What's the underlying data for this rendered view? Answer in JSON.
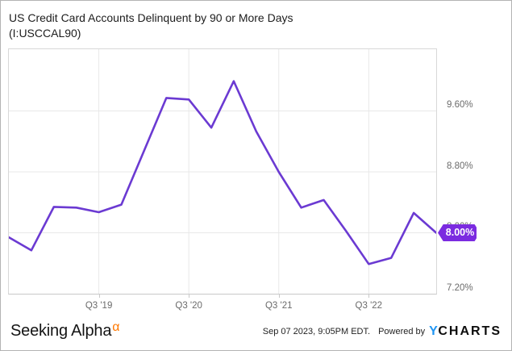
{
  "header": {
    "title_line1": "US Credit Card Accounts Delinquent by 90 or More Days",
    "title_line2": "(I:USCCAL90)"
  },
  "chart_data": {
    "type": "line",
    "title": "US Credit Card Accounts Delinquent by 90 or More Days (I:USCCAL90)",
    "unit": "%",
    "x": [
      "Q3 '18",
      "Q4 '18",
      "Q1 '19",
      "Q2 '19",
      "Q3 '19",
      "Q4 '19",
      "Q1 '20",
      "Q2 '20",
      "Q3 '20",
      "Q4 '20",
      "Q1 '21",
      "Q2 '21",
      "Q3 '21",
      "Q4 '21",
      "Q1 '22",
      "Q2 '22",
      "Q3 '22",
      "Q4 '22",
      "Q1 '23",
      "Q2 '23"
    ],
    "values": [
      7.94,
      7.77,
      8.34,
      8.33,
      8.27,
      8.37,
      9.07,
      9.77,
      9.75,
      9.38,
      9.99,
      9.33,
      8.8,
      8.33,
      8.43,
      8.02,
      7.59,
      7.67,
      8.26,
      8.0
    ],
    "ylim": [
      7.2,
      10.41
    ],
    "y_ticks": [
      {
        "value": 9.6,
        "label": "9.60%"
      },
      {
        "value": 8.8,
        "label": "8.80%"
      },
      {
        "value": 8.0,
        "label": "8.00%"
      },
      {
        "value": 7.2,
        "label": "7.20%"
      }
    ],
    "x_ticks": [
      {
        "index": 4,
        "label": "Q3 '19"
      },
      {
        "index": 8,
        "label": "Q3 '20"
      },
      {
        "index": 12,
        "label": "Q3 '21"
      },
      {
        "index": 16,
        "label": "Q3 '22"
      }
    ],
    "last_value_label": "8.00%",
    "line_color": "#6b3ad2",
    "badge_color": "#7b2be0",
    "grid": true,
    "legend": "none"
  },
  "footer": {
    "brand": {
      "text": "Seeking Alpha",
      "alpha_symbol": "α",
      "alpha_color": "#ff7800"
    },
    "timestamp": "Sep 07 2023, 9:05PM EDT.",
    "powered_by": "Powered by",
    "ycharts": {
      "y": "Y",
      "charts": "CHARTS",
      "y_color": "#2196f3"
    }
  }
}
